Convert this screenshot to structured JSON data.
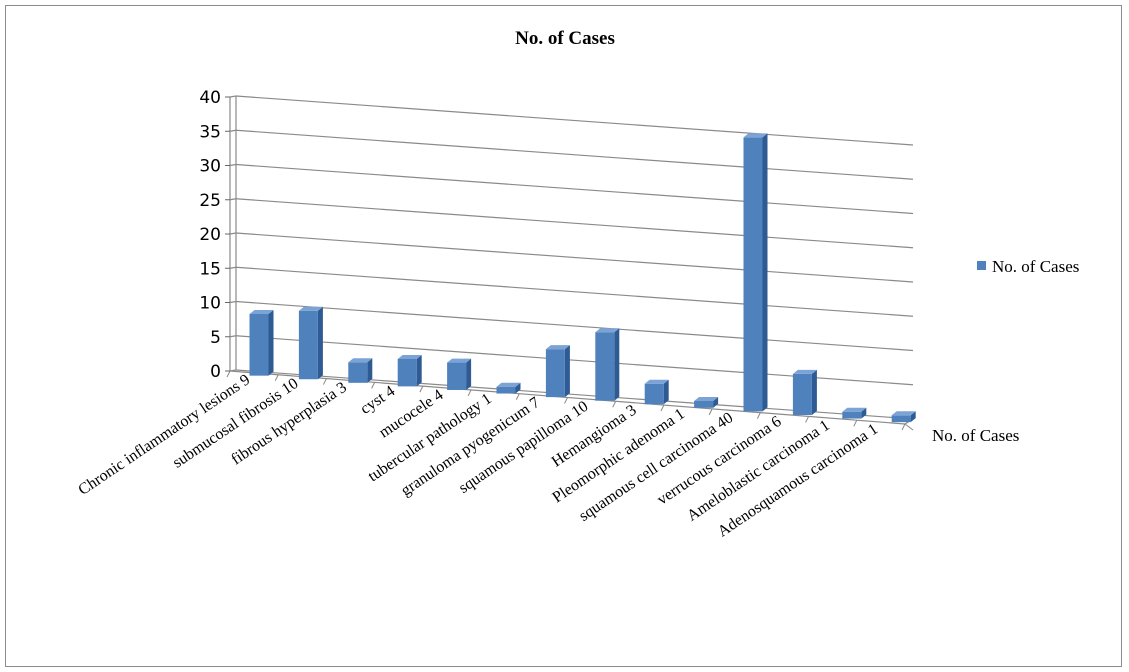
{
  "chart_data": {
    "type": "bar",
    "title": "No. of Cases",
    "categories": [
      "Chronic inflammatory lesions 9",
      "submucosal fibrosis 10",
      "fibrous hyperplasia 3",
      "cyst 4",
      "mucocele 4",
      "tubercular pathology 1",
      "granuloma pyogenicum 7",
      "squamous papilloma 10",
      "Hemangioma 3",
      "Pleomorphic adenoma 1",
      "squamous cell carcinoma 40",
      "verrucous carcinoma 6",
      "Ameloblastic carcinoma 1",
      "Adenosquamous carcinoma 1"
    ],
    "series": [
      {
        "name": "No. of Cases",
        "values": [
          9,
          10,
          3,
          4,
          4,
          1,
          7,
          10,
          3,
          1,
          40,
          6,
          1,
          1
        ]
      }
    ],
    "yticks": [
      "0",
      "5",
      "10",
      "15",
      "20",
      "25",
      "30",
      "35",
      "40"
    ],
    "ylim": [
      0,
      40
    ],
    "depth_axis_label": "No. of Cases",
    "legend": {
      "label": "No. of Cases",
      "position": "right"
    },
    "grid": true,
    "style": "3d-column",
    "bar_color": "#4f81bd"
  }
}
